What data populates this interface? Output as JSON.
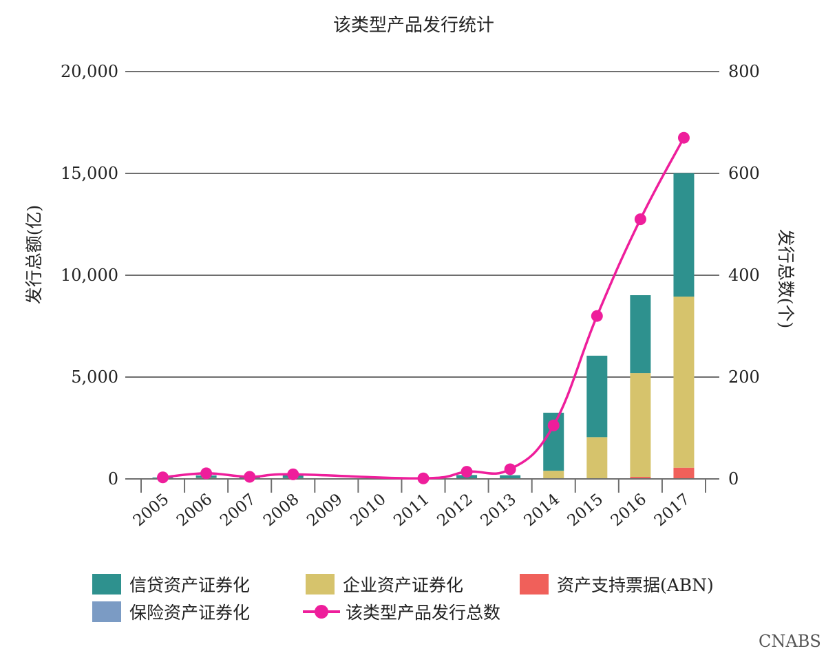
{
  "chart_data": {
    "type": "bar",
    "title": "该类型产品发行统计",
    "ylabel": "发行总额(亿)",
    "y2label": "发行总数(个)",
    "categories": [
      "2005",
      "2006",
      "2007",
      "2008",
      "2009",
      "2010",
      "2011",
      "2012",
      "2013",
      "2014",
      "2015",
      "2016",
      "2017"
    ],
    "ylim": [
      0,
      20000
    ],
    "y2lim": [
      0,
      800
    ],
    "yticks": [
      0,
      5000,
      10000,
      15000,
      20000
    ],
    "yticklabels": [
      "0",
      "5,000",
      "10,000",
      "15,000",
      "20,000"
    ],
    "y2ticks": [
      0,
      200,
      400,
      600,
      800
    ],
    "y2ticklabels": [
      "0",
      "200",
      "400",
      "600",
      "800"
    ],
    "grid": true,
    "stacked": true,
    "series": [
      {
        "name": "资产支持票据(ABN)",
        "color": "#f0605a",
        "values": [
          0,
          0,
          0,
          0,
          0,
          0,
          0,
          0,
          0,
          0,
          0,
          100,
          550
        ]
      },
      {
        "name": "企业资产证券化",
        "color": "#d6c36c",
        "values": [
          0,
          50,
          0,
          40,
          0,
          0,
          0,
          0,
          20,
          400,
          2050,
          5100,
          8400
        ]
      },
      {
        "name": "信贷资产证券化",
        "color": "#2e918e",
        "values": [
          70,
          120,
          80,
          170,
          0,
          0,
          0,
          190,
          160,
          2850,
          4000,
          3820,
          6060
        ]
      },
      {
        "name": "保险资产证券化",
        "color": "#7b9bc4",
        "values": [
          0,
          0,
          0,
          0,
          0,
          0,
          0,
          0,
          0,
          0,
          0,
          0,
          0
        ]
      }
    ],
    "line_series": {
      "name": "该类型产品发行总数",
      "color": "#ee1e9b",
      "axis": "right",
      "x": [
        "2005",
        "2006",
        "2007",
        "2008",
        "2011",
        "2012",
        "2013",
        "2014",
        "2015",
        "2016",
        "2017"
      ],
      "values": [
        3,
        11,
        4,
        9,
        1,
        14,
        19,
        105,
        320,
        510,
        670
      ]
    },
    "legend": [
      {
        "label": "信贷资产证券化",
        "color": "#2e918e",
        "kind": "bar"
      },
      {
        "label": "企业资产证券化",
        "color": "#d6c36c",
        "kind": "bar"
      },
      {
        "label": "资产支持票据(ABN)",
        "color": "#f0605a",
        "kind": "bar"
      },
      {
        "label": "保险资产证券化",
        "color": "#7b9bc4",
        "kind": "bar"
      },
      {
        "label": "该类型产品发行总数",
        "color": "#ee1e9b",
        "kind": "line"
      }
    ],
    "legend_position": "bottom"
  },
  "watermark": "CNABS"
}
